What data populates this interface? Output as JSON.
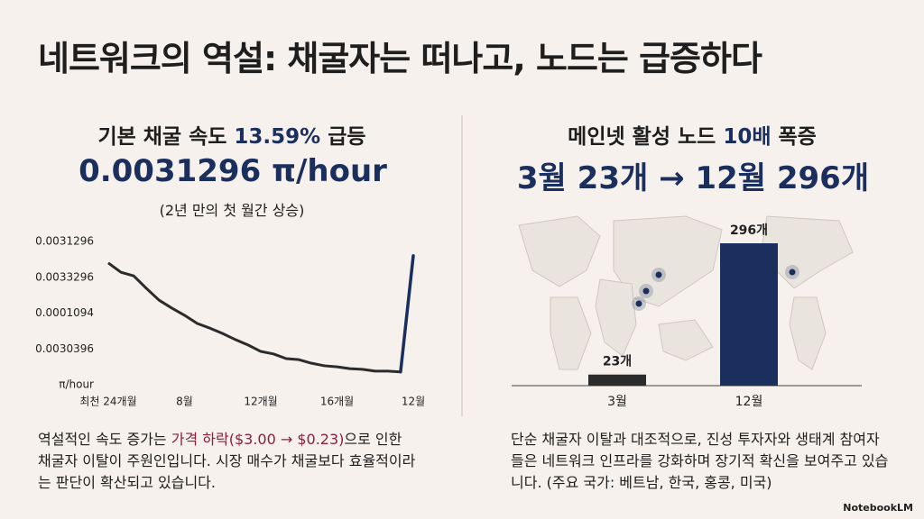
{
  "title": "네트워크의 역설: 채굴자는 떠나고, 노드는 급증하다",
  "left": {
    "heading": [
      "기본 채굴 속도 ",
      "13.59%",
      " 급등"
    ],
    "headline": "0.0031296 π/hour",
    "subheading": "(2년 만의 첫 월간 상승)",
    "body": [
      "역설적인 속도 증가는 ",
      "가격 하락($3.00 → $0.23)",
      "으로 인한 채굴자 이탈이 주원인입니다. 시장 매수가 채굴보다 효율적이라는 판단이 확산되고 있습니다."
    ]
  },
  "right": {
    "heading": [
      "메인넷 활성 노드 ",
      "10배",
      " 폭증"
    ],
    "headline": "3월 23개 → 12월 296개",
    "body": "단순 채굴자 이탈과 대조적으로, 진성 투자자와 생태계 참여자들은 네트워크 인프라를 강화하며 장기적 확신을 보여주고 있습니다. (주요 국가: 베트남, 한국, 홍콩, 미국)"
  },
  "footer": "NotebookLM",
  "chart_data": [
    {
      "type": "line",
      "x": [
        0,
        1,
        2,
        3,
        4,
        5,
        6,
        7,
        8,
        9,
        10,
        11,
        12,
        13,
        14,
        15,
        16,
        17,
        18,
        19,
        20,
        21,
        22,
        23,
        24
      ],
      "series": [
        {
          "color": "#2b2b2b",
          "values": [
            3.4,
            3.14,
            3.04,
            2.69,
            2.36,
            2.14,
            1.94,
            1.71,
            1.58,
            1.43,
            1.26,
            1.11,
            0.93,
            0.86,
            0.73,
            0.7,
            0.6,
            0.53,
            0.5,
            0.45,
            0.43,
            0.38,
            0.38,
            0.36,
            3.6
          ]
        }
      ],
      "highlight_color": "#1b2f5e",
      "xlim": [
        0,
        24
      ],
      "xticks": [
        {
          "value": 0,
          "label": "최천 24개월"
        },
        {
          "value": 6,
          "label": "8월"
        },
        {
          "value": 12,
          "label": "12개월"
        },
        {
          "value": 18,
          "label": "16개월"
        },
        {
          "value": 24,
          "label": "12월"
        }
      ],
      "ylim": [
        0,
        4
      ],
      "yticks": [
        {
          "value": 4,
          "label": "0.0031296"
        },
        {
          "value": 3,
          "label": "0.0033296"
        },
        {
          "value": 2,
          "label": "0.0001094"
        },
        {
          "value": 1,
          "label": "0.0030396"
        },
        {
          "value": 0,
          "label": "π/hour"
        }
      ]
    },
    {
      "type": "bar",
      "categories": [
        "3월",
        "12월"
      ],
      "values": [
        23,
        296
      ],
      "value_labels": [
        "23개",
        "296개"
      ],
      "colors": [
        "#2b2b2b",
        "#1b2f5e"
      ]
    }
  ]
}
